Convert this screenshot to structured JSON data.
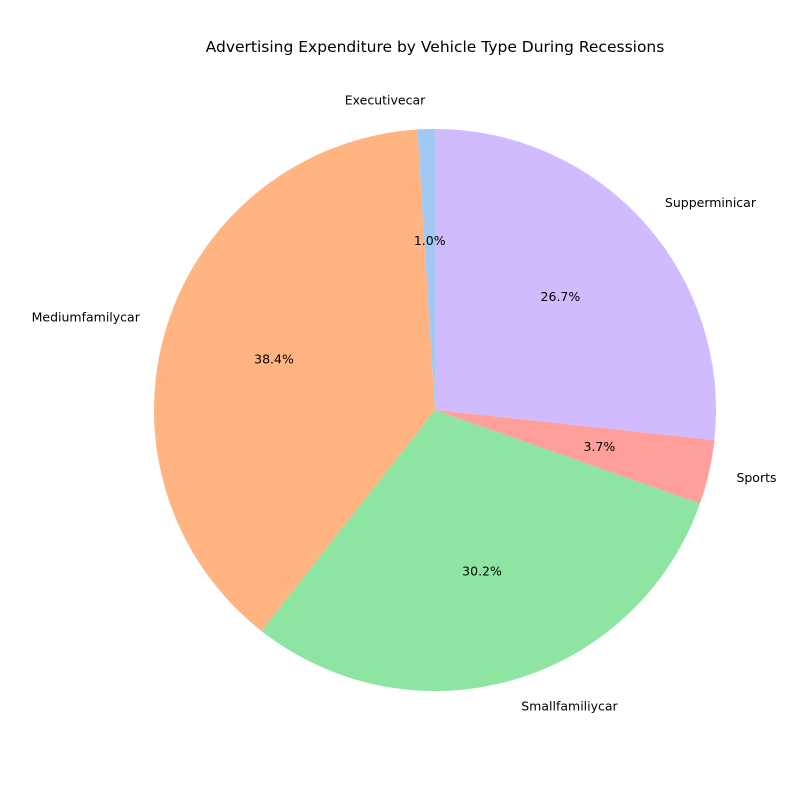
{
  "chart_data": {
    "type": "pie",
    "title": "Advertising Expenditure by Vehicle Type During Recessions",
    "slices": [
      {
        "label": "Executivecar",
        "value": 1.0,
        "pct_label": "1.0%",
        "color": "#a1c9f4"
      },
      {
        "label": "Mediumfamilycar",
        "value": 38.4,
        "pct_label": "38.4%",
        "color": "#ffb482"
      },
      {
        "label": "Smallfamiliycar",
        "value": 30.2,
        "pct_label": "30.2%",
        "color": "#8de5a1"
      },
      {
        "label": "Sports",
        "value": 3.7,
        "pct_label": "3.7%",
        "color": "#ff9f9b"
      },
      {
        "label": "Supperminicar",
        "value": 26.7,
        "pct_label": "26.7%",
        "color": "#d0bbff"
      }
    ],
    "start_angle_deg": 90,
    "direction": "counterclockwise",
    "legend": "none"
  }
}
